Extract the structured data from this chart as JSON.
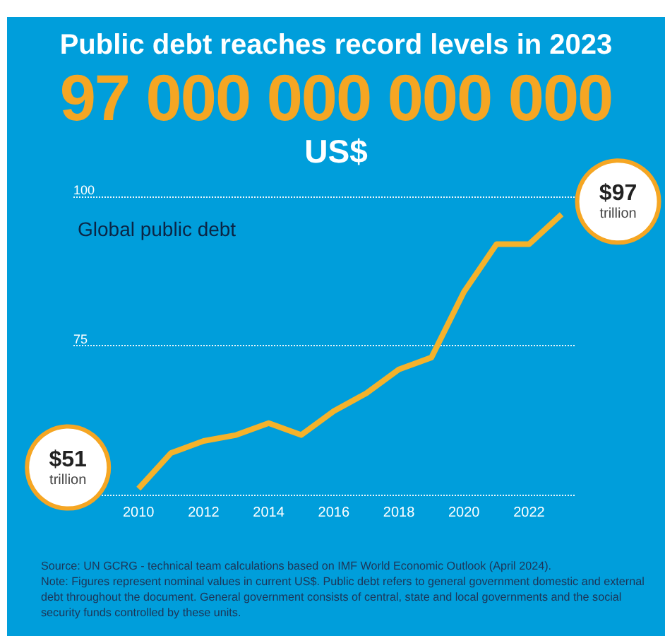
{
  "chart_data": {
    "type": "line",
    "title": "Public debt reaches record levels in 2023",
    "subtitle": "97 000 000 000 000",
    "x": [
      2010,
      2011,
      2012,
      2013,
      2014,
      2015,
      2016,
      2017,
      2018,
      2019,
      2020,
      2021,
      2022,
      2023
    ],
    "series": [
      {
        "name": "Global public debt",
        "color": "#f5b22a",
        "values": [
          51,
          57,
          59,
          60,
          62,
          60,
          64,
          67,
          71,
          73,
          84,
          92,
          92,
          97
        ]
      }
    ],
    "xlim": [
      2008,
      2023.4
    ],
    "xticks": [
      2010,
      2012,
      2014,
      2016,
      2018,
      2020,
      2022
    ],
    "ylim": [
      50,
      100
    ],
    "yticks": [
      {
        "value": 50,
        "label": null
      },
      75,
      100
    ],
    "grid": "y",
    "annotations": [
      "US$",
      {
        "text": "$51 trillion",
        "x": 2010,
        "y": 51
      },
      {
        "text": "$97 trillion",
        "x": 2023,
        "y": 97
      },
      "Source: UN GCRG - technical team calculations based on IMF World Economic Outlook (April 2024).",
      "Note: Figures represent nominal values in current US$. Public debt refers to general government domestic and external debt throughout the document. General government consists of central, state and local governments and the social security funds controlled by these units."
    ]
  }
}
